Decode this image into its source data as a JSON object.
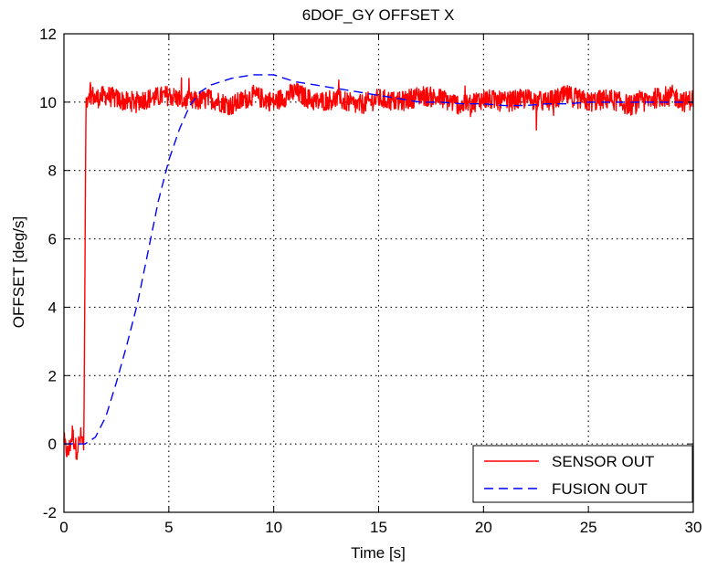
{
  "chart_data": {
    "type": "line",
    "title": "6DOF_GY OFFSET X",
    "xlabel": "Time [s]",
    "ylabel": "OFFSET [deg/s]",
    "xlim": [
      0,
      30
    ],
    "ylim": [
      -2,
      12
    ],
    "xticks": [
      0,
      5,
      10,
      15,
      20,
      25,
      30
    ],
    "yticks": [
      -2,
      0,
      2,
      4,
      6,
      8,
      10,
      12
    ],
    "xtick_labels": [
      "0",
      "5",
      "10",
      "15",
      "20",
      "25",
      "30"
    ],
    "ytick_labels": [
      "-2",
      "0",
      "2",
      "4",
      "6",
      "8",
      "10",
      "12"
    ],
    "grid": true,
    "legend_position": "bottom-right",
    "series": [
      {
        "name": "SENSOR OUT",
        "color": "#ff0000",
        "style": "solid",
        "x": [
          0,
          0.2,
          0.4,
          0.6,
          0.8,
          0.95,
          1.0,
          1.05,
          1.2,
          1.5,
          2,
          3,
          4,
          5,
          6,
          7,
          8,
          9,
          10,
          11,
          12,
          13,
          14,
          15,
          16,
          17,
          18,
          19,
          20,
          21,
          22,
          23,
          24,
          25,
          26,
          27,
          28,
          29,
          29.6,
          30
        ],
        "y": [
          0,
          -0.3,
          0.3,
          -0.2,
          0.2,
          0,
          5,
          10,
          10.3,
          10.1,
          10.2,
          10.0,
          10.1,
          10.2,
          10.0,
          10.1,
          9.9,
          10.2,
          10.0,
          10.3,
          10.0,
          10.1,
          9.9,
          10.1,
          10.0,
          10.2,
          10.1,
          9.9,
          10.1,
          10.0,
          10.1,
          10.0,
          10.2,
          10.0,
          10.1,
          9.9,
          10.1,
          10.2,
          10.0,
          10.1
        ],
        "noise_amplitude": 0.3
      },
      {
        "name": "FUSION OUT",
        "color": "#0000ff",
        "style": "dashed",
        "x": [
          0,
          1,
          1.5,
          2,
          2.5,
          3,
          3.5,
          4,
          4.5,
          5,
          5.5,
          6,
          6.5,
          7,
          8,
          9,
          10,
          11,
          12,
          13,
          14,
          15,
          16,
          17,
          18,
          19,
          20,
          21,
          22,
          23,
          24,
          25,
          26,
          27,
          28,
          29,
          30
        ],
        "y": [
          0,
          0,
          0.2,
          0.8,
          1.8,
          2.9,
          4.1,
          5.6,
          7.1,
          8.3,
          9.2,
          9.9,
          10.3,
          10.5,
          10.7,
          10.8,
          10.8,
          10.6,
          10.5,
          10.4,
          10.3,
          10.2,
          10.1,
          10.0,
          10.0,
          9.95,
          9.95,
          9.9,
          9.9,
          9.95,
          9.95,
          10.0,
          10.0,
          10.0,
          10.0,
          10.0,
          10.0
        ]
      }
    ]
  }
}
